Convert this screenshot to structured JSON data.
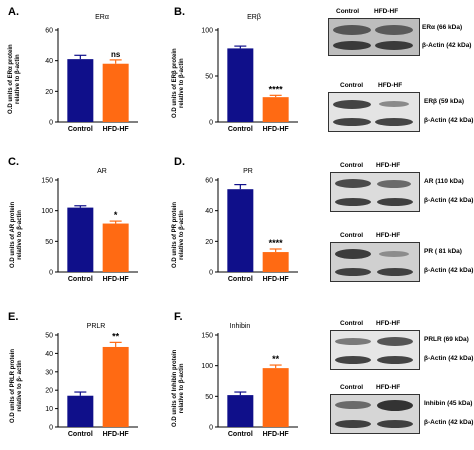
{
  "colors": {
    "control": "#0f0f8a",
    "hfd": "#ff6a13"
  },
  "chart_data": [
    {
      "id": "A",
      "type": "bar",
      "panel_label": "A.",
      "title": "ERα",
      "ylabel_lines": [
        "O.D units of ERα protein",
        "relative to β-actin"
      ],
      "categories": [
        "Control",
        "HFD-HF"
      ],
      "values": [
        41,
        38
      ],
      "errors": [
        2.5,
        2.5
      ],
      "ylim": [
        0,
        60
      ],
      "yticks": [
        0,
        20,
        40,
        60
      ],
      "significance": "ns"
    },
    {
      "id": "B",
      "type": "bar",
      "panel_label": "B.",
      "title": "ERβ",
      "ylabel_lines": [
        "O.D units of ERβ protein",
        "relative to β-actin"
      ],
      "categories": [
        "Control",
        "HFD-HF"
      ],
      "values": [
        80,
        27
      ],
      "errors": [
        2.5,
        2
      ],
      "ylim": [
        0,
        100
      ],
      "yticks": [
        0,
        50,
        100
      ],
      "significance": "****"
    },
    {
      "id": "C",
      "type": "bar",
      "panel_label": "C.",
      "title": "AR",
      "ylabel_lines": [
        "O.D units of AR protein",
        "relative to β-actin"
      ],
      "categories": [
        "Control",
        "HFD-HF"
      ],
      "values": [
        105,
        79
      ],
      "errors": [
        3,
        4
      ],
      "ylim": [
        0,
        150
      ],
      "yticks": [
        0,
        50,
        100,
        150
      ],
      "significance": "*"
    },
    {
      "id": "D",
      "type": "bar",
      "panel_label": "D.",
      "title": "PR",
      "ylabel_lines": [
        "O.D units of PR protein",
        "relative to β-actin"
      ],
      "categories": [
        "Control",
        "HFD-HF"
      ],
      "values": [
        54,
        13
      ],
      "errors": [
        3,
        2
      ],
      "ylim": [
        0,
        60
      ],
      "yticks": [
        0,
        20,
        40,
        60
      ],
      "significance": "****"
    },
    {
      "id": "E",
      "type": "bar",
      "panel_label": "E.",
      "title": "PRLR",
      "ylabel_lines": [
        "O.D units of PRLR protein",
        "relative to β- actin"
      ],
      "categories": [
        "Control",
        "HFD-HF"
      ],
      "values": [
        17,
        43.5
      ],
      "errors": [
        2,
        2.5
      ],
      "ylim": [
        0,
        50
      ],
      "yticks": [
        0,
        10,
        20,
        30,
        40,
        50
      ],
      "significance": "**"
    },
    {
      "id": "F",
      "type": "bar",
      "panel_label": "F.",
      "title": "Inhibin",
      "ylabel_lines": [
        "O.D units of Inhibin protein",
        "relative to β-actin"
      ],
      "categories": [
        "Control",
        "HFD-HF"
      ],
      "values": [
        52,
        96
      ],
      "errors": [
        5,
        5
      ],
      "ylim": [
        0,
        150
      ],
      "yticks": [
        0,
        50,
        100,
        150
      ],
      "significance": "**"
    }
  ],
  "blots": [
    {
      "id": "era",
      "headers": [
        "Control",
        "HFD-HF"
      ],
      "rows": [
        {
          "label": "ERα (66 kDa)"
        },
        {
          "label": "β-Actin (42 kDa)"
        }
      ]
    },
    {
      "id": "erb",
      "headers": [
        "Control",
        "HFD-HF"
      ],
      "rows": [
        {
          "label": "ERβ (59 kDa)"
        },
        {
          "label": "β-Actin (42 kDa)"
        }
      ]
    },
    {
      "id": "ar",
      "headers": [
        "Control",
        "HFD-HF"
      ],
      "rows": [
        {
          "label": "AR (110 kDa)"
        },
        {
          "label": "β-Actin (42 kDa)"
        }
      ]
    },
    {
      "id": "pr",
      "headers": [
        "Control",
        "HFD-HF"
      ],
      "rows": [
        {
          "label": "PR ( 81 kDa)"
        },
        {
          "label": "β-Actin (42 kDa)"
        }
      ]
    },
    {
      "id": "prlr",
      "headers": [
        "Control",
        "HFD-HF"
      ],
      "rows": [
        {
          "label": "PRLR (69 kDa)"
        },
        {
          "label": "β-Actin (42 kDa)"
        }
      ]
    },
    {
      "id": "inhibin",
      "headers": [
        "Control",
        "HFD-HF"
      ],
      "rows": [
        {
          "label": "Inhibin (45 kDa)"
        },
        {
          "label": "β-Actin (42 kDa)"
        }
      ]
    }
  ]
}
